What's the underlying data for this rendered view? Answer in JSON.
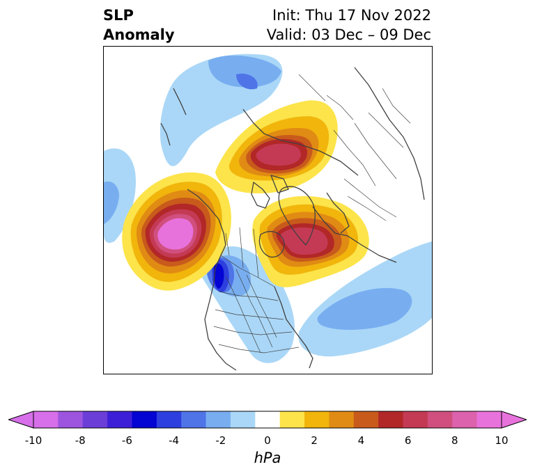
{
  "header": {
    "title_line1": "SLP",
    "title_line2": "Anomaly",
    "init_text": "Init: Thu 17 Nov 2022",
    "valid_text": "Valid: 03 Dec – 09 Dec"
  },
  "colorbar": {
    "unit": "hPa",
    "tick_labels": [
      "-10",
      "-8",
      "-6",
      "-4",
      "-2",
      "0",
      "2",
      "4",
      "6",
      "8",
      "10"
    ],
    "levels": [
      -10,
      -9,
      -8,
      -7,
      -6,
      -5,
      -4,
      -3,
      -2,
      -1,
      1,
      2,
      3,
      4,
      5,
      6,
      7,
      8,
      9,
      10
    ],
    "colors": [
      "#d66fe9",
      "#9d55df",
      "#6b3ed8",
      "#3e1fd8",
      "#0404d3",
      "#2d3fde",
      "#4f74e8",
      "#78aef0",
      "#aad7f7",
      "#ffffff",
      "#fce44a",
      "#f1b50c",
      "#e08b14",
      "#c85a1c",
      "#b22727",
      "#c43a54",
      "#d04f7e",
      "#dc62ad",
      "#e872dc"
    ],
    "under_color": "#d66fe9",
    "over_color": "#e872dc"
  },
  "map": {
    "projection": "north-polar-stereographic",
    "features": [
      "coastlines",
      "country-borders",
      "us-state-borders",
      "canadian-province-borders"
    ]
  }
}
